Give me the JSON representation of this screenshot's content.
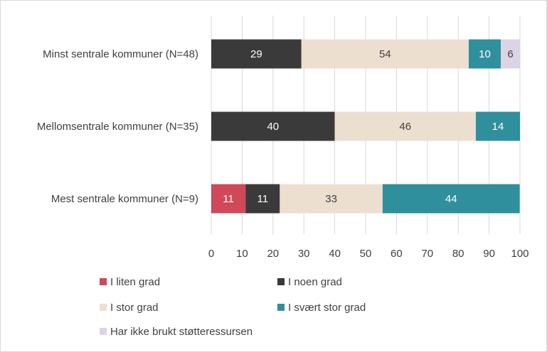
{
  "chart_data": {
    "type": "bar",
    "orientation": "horizontal",
    "stacked": true,
    "categories": [
      "Minst sentrale kommuner (N=48)",
      "Mellomsentrale kommuner (N=35)",
      "Mest sentrale kommuner (N=9)"
    ],
    "series": [
      {
        "name": "I liten grad",
        "color": "#d0485a",
        "label_color": "#ffffff",
        "values": [
          0,
          0,
          11.1
        ]
      },
      {
        "name": "I noen grad",
        "color": "#3a3a3a",
        "label_color": "#ffffff",
        "values": [
          29.2,
          40.0,
          11.1
        ]
      },
      {
        "name": "I stor grad",
        "color": "#eddfd0",
        "label_color": "#404040",
        "values": [
          54.2,
          45.7,
          33.3
        ]
      },
      {
        "name": "I svært stor grad",
        "color": "#2f8f9d",
        "label_color": "#ffffff",
        "values": [
          10.4,
          14.3,
          44.4
        ]
      },
      {
        "name": "Har ikke brukt støtteressursen",
        "color": "#dcd3e4",
        "label_color": "#404040",
        "values": [
          6.2,
          0,
          0
        ]
      }
    ],
    "data_labels": [
      [
        "",
        "29",
        "54",
        "10",
        "6"
      ],
      [
        "",
        "40",
        "46",
        "14",
        ""
      ],
      [
        "11",
        "11",
        "33",
        "44",
        ""
      ]
    ],
    "xlim": [
      0,
      100
    ],
    "xticks": [
      "0",
      "10",
      "20",
      "30",
      "40",
      "50",
      "60",
      "70",
      "80",
      "90",
      "100"
    ],
    "grid": "vertical",
    "legend_position": "bottom",
    "gridline_color": "#d9d9d9"
  }
}
